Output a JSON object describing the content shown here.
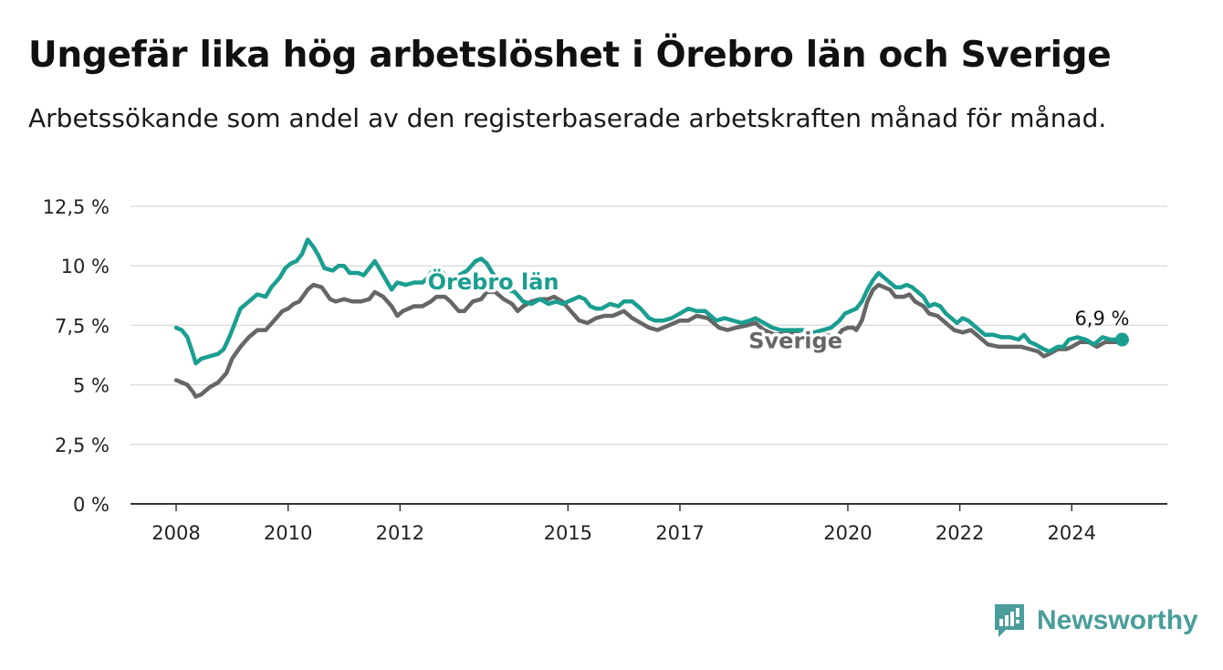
{
  "header": {
    "title": "Ungefär lika hög arbetslöshet i Örebro län och Sverige",
    "subtitle": "Arbetssökande som andel av den registerbaserade arbetskraften månad för månad."
  },
  "logo": {
    "text": "Newsworthy",
    "icon": "newsworthy-bar-chart-icon",
    "color": "#4a9d9a"
  },
  "chart_data": {
    "type": "line",
    "title": "Ungefär lika hög arbetslöshet i Örebro län och Sverige",
    "subtitle": "Arbetssökande som andel av den registerbaserade arbetskraften månad för månad.",
    "xlabel": "",
    "ylabel": "",
    "ylim": [
      0,
      12.5
    ],
    "xlim": [
      2007.9,
      2025.45
    ],
    "y_ticks": [
      {
        "value": 0,
        "label": "0 %"
      },
      {
        "value": 2.5,
        "label": "2,5 %"
      },
      {
        "value": 5,
        "label": "5 %"
      },
      {
        "value": 7.5,
        "label": "7,5 %"
      },
      {
        "value": 10,
        "label": "10 %"
      },
      {
        "value": 12.5,
        "label": "12,5 %"
      }
    ],
    "x_ticks": [
      {
        "value": 2008,
        "label": "2008"
      },
      {
        "value": 2010,
        "label": "2010"
      },
      {
        "value": 2012,
        "label": "2012"
      },
      {
        "value": 2015,
        "label": "2015"
      },
      {
        "value": 2017,
        "label": "2017"
      },
      {
        "value": 2020,
        "label": "2020"
      },
      {
        "value": 2022,
        "label": "2022"
      },
      {
        "value": 2024,
        "label": "2024"
      }
    ],
    "grid": true,
    "series": [
      {
        "name": "Sverige",
        "color": "#666666",
        "points": [
          [
            2008.0,
            5.2
          ],
          [
            2008.1,
            5.1
          ],
          [
            2008.2,
            5.0
          ],
          [
            2008.3,
            4.7
          ],
          [
            2008.35,
            4.5
          ],
          [
            2008.45,
            4.6
          ],
          [
            2008.6,
            4.9
          ],
          [
            2008.75,
            5.1
          ],
          [
            2008.9,
            5.5
          ],
          [
            2009.0,
            6.1
          ],
          [
            2009.15,
            6.6
          ],
          [
            2009.3,
            7.0
          ],
          [
            2009.45,
            7.3
          ],
          [
            2009.6,
            7.3
          ],
          [
            2009.75,
            7.7
          ],
          [
            2009.9,
            8.1
          ],
          [
            2010.0,
            8.2
          ],
          [
            2010.1,
            8.4
          ],
          [
            2010.2,
            8.5
          ],
          [
            2010.35,
            9.0
          ],
          [
            2010.45,
            9.2
          ],
          [
            2010.6,
            9.1
          ],
          [
            2010.75,
            8.6
          ],
          [
            2010.85,
            8.5
          ],
          [
            2011.0,
            8.6
          ],
          [
            2011.15,
            8.5
          ],
          [
            2011.3,
            8.5
          ],
          [
            2011.45,
            8.6
          ],
          [
            2011.55,
            8.9
          ],
          [
            2011.7,
            8.7
          ],
          [
            2011.85,
            8.3
          ],
          [
            2011.95,
            7.9
          ],
          [
            2012.05,
            8.1
          ],
          [
            2012.25,
            8.3
          ],
          [
            2012.4,
            8.3
          ],
          [
            2012.55,
            8.5
          ],
          [
            2012.65,
            8.7
          ],
          [
            2012.8,
            8.7
          ],
          [
            2012.9,
            8.5
          ],
          [
            2013.05,
            8.1
          ],
          [
            2013.15,
            8.1
          ],
          [
            2013.3,
            8.5
          ],
          [
            2013.45,
            8.6
          ],
          [
            2013.55,
            8.9
          ],
          [
            2013.7,
            8.9
          ],
          [
            2013.85,
            8.6
          ],
          [
            2014.0,
            8.4
          ],
          [
            2014.1,
            8.1
          ],
          [
            2014.2,
            8.3
          ],
          [
            2014.35,
            8.5
          ],
          [
            2014.5,
            8.6
          ],
          [
            2014.65,
            8.6
          ],
          [
            2014.75,
            8.7
          ],
          [
            2014.9,
            8.5
          ],
          [
            2015.05,
            8.1
          ],
          [
            2015.2,
            7.7
          ],
          [
            2015.35,
            7.6
          ],
          [
            2015.5,
            7.8
          ],
          [
            2015.65,
            7.9
          ],
          [
            2015.8,
            7.9
          ],
          [
            2016.0,
            8.1
          ],
          [
            2016.15,
            7.8
          ],
          [
            2016.3,
            7.6
          ],
          [
            2016.45,
            7.4
          ],
          [
            2016.6,
            7.3
          ],
          [
            2016.8,
            7.5
          ],
          [
            2017.0,
            7.7
          ],
          [
            2017.15,
            7.7
          ],
          [
            2017.3,
            7.9
          ],
          [
            2017.5,
            7.8
          ],
          [
            2017.6,
            7.6
          ],
          [
            2017.7,
            7.4
          ],
          [
            2017.85,
            7.3
          ],
          [
            2018.0,
            7.4
          ],
          [
            2018.2,
            7.5
          ],
          [
            2018.35,
            7.6
          ],
          [
            2018.5,
            7.3
          ],
          [
            2018.7,
            7.1
          ],
          [
            2019.0,
            7.2
          ],
          [
            2019.3,
            7.0
          ],
          [
            2019.6,
            7.1
          ],
          [
            2019.8,
            7.0
          ],
          [
            2019.9,
            7.3
          ],
          [
            2020.0,
            7.4
          ],
          [
            2020.1,
            7.4
          ],
          [
            2020.15,
            7.3
          ],
          [
            2020.25,
            7.7
          ],
          [
            2020.35,
            8.5
          ],
          [
            2020.45,
            9.0
          ],
          [
            2020.55,
            9.2
          ],
          [
            2020.65,
            9.1
          ],
          [
            2020.75,
            9.0
          ],
          [
            2020.85,
            8.7
          ],
          [
            2021.0,
            8.7
          ],
          [
            2021.1,
            8.8
          ],
          [
            2021.2,
            8.5
          ],
          [
            2021.35,
            8.3
          ],
          [
            2021.45,
            8.0
          ],
          [
            2021.6,
            7.9
          ],
          [
            2021.75,
            7.6
          ],
          [
            2021.9,
            7.3
          ],
          [
            2022.05,
            7.2
          ],
          [
            2022.2,
            7.3
          ],
          [
            2022.35,
            7.0
          ],
          [
            2022.5,
            6.7
          ],
          [
            2022.7,
            6.6
          ],
          [
            2022.9,
            6.6
          ],
          [
            2023.1,
            6.6
          ],
          [
            2023.25,
            6.5
          ],
          [
            2023.4,
            6.4
          ],
          [
            2023.5,
            6.2
          ],
          [
            2023.6,
            6.3
          ],
          [
            2023.75,
            6.5
          ],
          [
            2023.9,
            6.5
          ],
          [
            2024.0,
            6.6
          ],
          [
            2024.15,
            6.8
          ],
          [
            2024.3,
            6.8
          ],
          [
            2024.45,
            6.6
          ],
          [
            2024.6,
            6.8
          ],
          [
            2024.75,
            6.8
          ],
          [
            2024.9,
            6.8
          ]
        ]
      },
      {
        "name": "Örebro län",
        "color": "#1a9e90",
        "points": [
          [
            2008.0,
            7.4
          ],
          [
            2008.1,
            7.3
          ],
          [
            2008.2,
            7.0
          ],
          [
            2008.3,
            6.3
          ],
          [
            2008.35,
            5.9
          ],
          [
            2008.45,
            6.1
          ],
          [
            2008.6,
            6.2
          ],
          [
            2008.75,
            6.3
          ],
          [
            2008.85,
            6.5
          ],
          [
            2008.95,
            7.0
          ],
          [
            2009.05,
            7.6
          ],
          [
            2009.15,
            8.2
          ],
          [
            2009.3,
            8.5
          ],
          [
            2009.45,
            8.8
          ],
          [
            2009.6,
            8.7
          ],
          [
            2009.7,
            9.1
          ],
          [
            2009.85,
            9.5
          ],
          [
            2009.95,
            9.9
          ],
          [
            2010.05,
            10.1
          ],
          [
            2010.15,
            10.2
          ],
          [
            2010.25,
            10.5
          ],
          [
            2010.35,
            11.1
          ],
          [
            2010.45,
            10.8
          ],
          [
            2010.55,
            10.4
          ],
          [
            2010.65,
            9.9
          ],
          [
            2010.8,
            9.8
          ],
          [
            2010.9,
            10.0
          ],
          [
            2011.0,
            10.0
          ],
          [
            2011.1,
            9.7
          ],
          [
            2011.25,
            9.7
          ],
          [
            2011.35,
            9.6
          ],
          [
            2011.45,
            9.9
          ],
          [
            2011.55,
            10.2
          ],
          [
            2011.65,
            9.8
          ],
          [
            2011.75,
            9.4
          ],
          [
            2011.85,
            9.0
          ],
          [
            2011.95,
            9.3
          ],
          [
            2012.1,
            9.2
          ],
          [
            2012.25,
            9.3
          ],
          [
            2012.4,
            9.3
          ],
          [
            2012.5,
            9.5
          ],
          [
            2012.6,
            9.9
          ],
          [
            2012.7,
            9.9
          ],
          [
            2012.8,
            9.6
          ],
          [
            2012.9,
            9.1
          ],
          [
            2013.05,
            9.6
          ],
          [
            2013.2,
            9.8
          ],
          [
            2013.35,
            10.2
          ],
          [
            2013.45,
            10.3
          ],
          [
            2013.55,
            10.1
          ],
          [
            2013.65,
            9.7
          ],
          [
            2013.75,
            9.4
          ],
          [
            2013.9,
            9.0
          ],
          [
            2014.05,
            8.9
          ],
          [
            2014.2,
            8.5
          ],
          [
            2014.35,
            8.4
          ],
          [
            2014.5,
            8.6
          ],
          [
            2014.65,
            8.4
          ],
          [
            2014.8,
            8.5
          ],
          [
            2014.9,
            8.4
          ],
          [
            2015.0,
            8.5
          ],
          [
            2015.1,
            8.6
          ],
          [
            2015.2,
            8.7
          ],
          [
            2015.3,
            8.6
          ],
          [
            2015.4,
            8.3
          ],
          [
            2015.5,
            8.2
          ],
          [
            2015.6,
            8.2
          ],
          [
            2015.75,
            8.4
          ],
          [
            2015.9,
            8.3
          ],
          [
            2016.0,
            8.5
          ],
          [
            2016.15,
            8.5
          ],
          [
            2016.3,
            8.2
          ],
          [
            2016.45,
            7.8
          ],
          [
            2016.55,
            7.7
          ],
          [
            2016.7,
            7.7
          ],
          [
            2016.85,
            7.8
          ],
          [
            2017.0,
            8.0
          ],
          [
            2017.15,
            8.2
          ],
          [
            2017.3,
            8.1
          ],
          [
            2017.45,
            8.1
          ],
          [
            2017.55,
            7.9
          ],
          [
            2017.65,
            7.7
          ],
          [
            2017.8,
            7.8
          ],
          [
            2017.95,
            7.7
          ],
          [
            2018.1,
            7.6
          ],
          [
            2018.25,
            7.7
          ],
          [
            2018.35,
            7.8
          ],
          [
            2018.5,
            7.6
          ],
          [
            2018.65,
            7.4
          ],
          [
            2018.8,
            7.3
          ],
          [
            2019.0,
            7.3
          ],
          [
            2019.2,
            7.3
          ],
          [
            2019.4,
            7.2
          ],
          [
            2019.55,
            7.3
          ],
          [
            2019.7,
            7.4
          ],
          [
            2019.85,
            7.7
          ],
          [
            2019.95,
            8.0
          ],
          [
            2020.05,
            8.1
          ],
          [
            2020.15,
            8.2
          ],
          [
            2020.25,
            8.5
          ],
          [
            2020.35,
            9.0
          ],
          [
            2020.45,
            9.4
          ],
          [
            2020.55,
            9.7
          ],
          [
            2020.65,
            9.5
          ],
          [
            2020.75,
            9.3
          ],
          [
            2020.85,
            9.1
          ],
          [
            2020.95,
            9.1
          ],
          [
            2021.05,
            9.2
          ],
          [
            2021.15,
            9.1
          ],
          [
            2021.25,
            8.9
          ],
          [
            2021.35,
            8.7
          ],
          [
            2021.45,
            8.3
          ],
          [
            2021.55,
            8.4
          ],
          [
            2021.65,
            8.3
          ],
          [
            2021.75,
            8.0
          ],
          [
            2021.85,
            7.8
          ],
          [
            2021.95,
            7.6
          ],
          [
            2022.05,
            7.8
          ],
          [
            2022.15,
            7.7
          ],
          [
            2022.3,
            7.4
          ],
          [
            2022.45,
            7.1
          ],
          [
            2022.6,
            7.1
          ],
          [
            2022.75,
            7.0
          ],
          [
            2022.9,
            7.0
          ],
          [
            2023.05,
            6.9
          ],
          [
            2023.15,
            7.1
          ],
          [
            2023.25,
            6.8
          ],
          [
            2023.35,
            6.7
          ],
          [
            2023.5,
            6.5
          ],
          [
            2023.6,
            6.4
          ],
          [
            2023.75,
            6.6
          ],
          [
            2023.85,
            6.6
          ],
          [
            2023.95,
            6.9
          ],
          [
            2024.1,
            7.0
          ],
          [
            2024.25,
            6.9
          ],
          [
            2024.4,
            6.7
          ],
          [
            2024.55,
            7.0
          ],
          [
            2024.7,
            6.9
          ],
          [
            2024.85,
            6.9
          ],
          [
            2024.9,
            6.9
          ]
        ]
      }
    ],
    "annotations": [
      {
        "text": "Örebro län",
        "series": "Örebro län",
        "x": 2013.7,
        "y": 9.4,
        "color": "#1a9e90"
      },
      {
        "text": "Sverige",
        "series": "Sverige",
        "x": 2019.0,
        "y": 6.8,
        "color": "#666666"
      },
      {
        "text": "6,9 %",
        "x": 2024.9,
        "y": 6.9,
        "color": "#111111"
      }
    ],
    "endpoint": {
      "series": "Örebro län",
      "x": 2024.9,
      "y": 6.9
    }
  }
}
